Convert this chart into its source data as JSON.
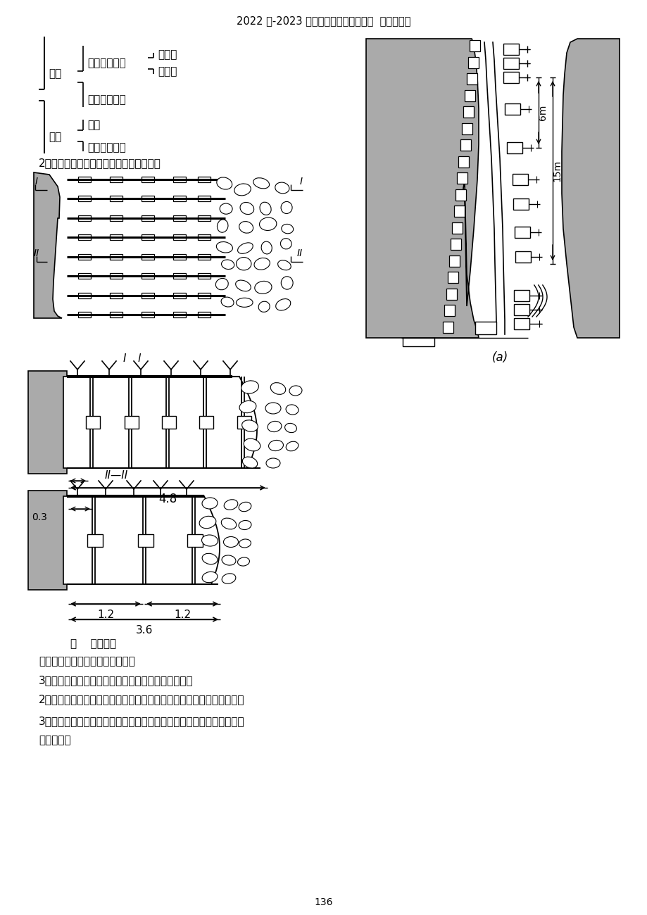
{
  "title": "2022 年-2023 年建筑工程管理行业文档  齐鲁斌创作",
  "page_num": "136",
  "bg_color": "#ffffff",
  "gray_fill": "#aaaaaa",
  "black": "#000000"
}
